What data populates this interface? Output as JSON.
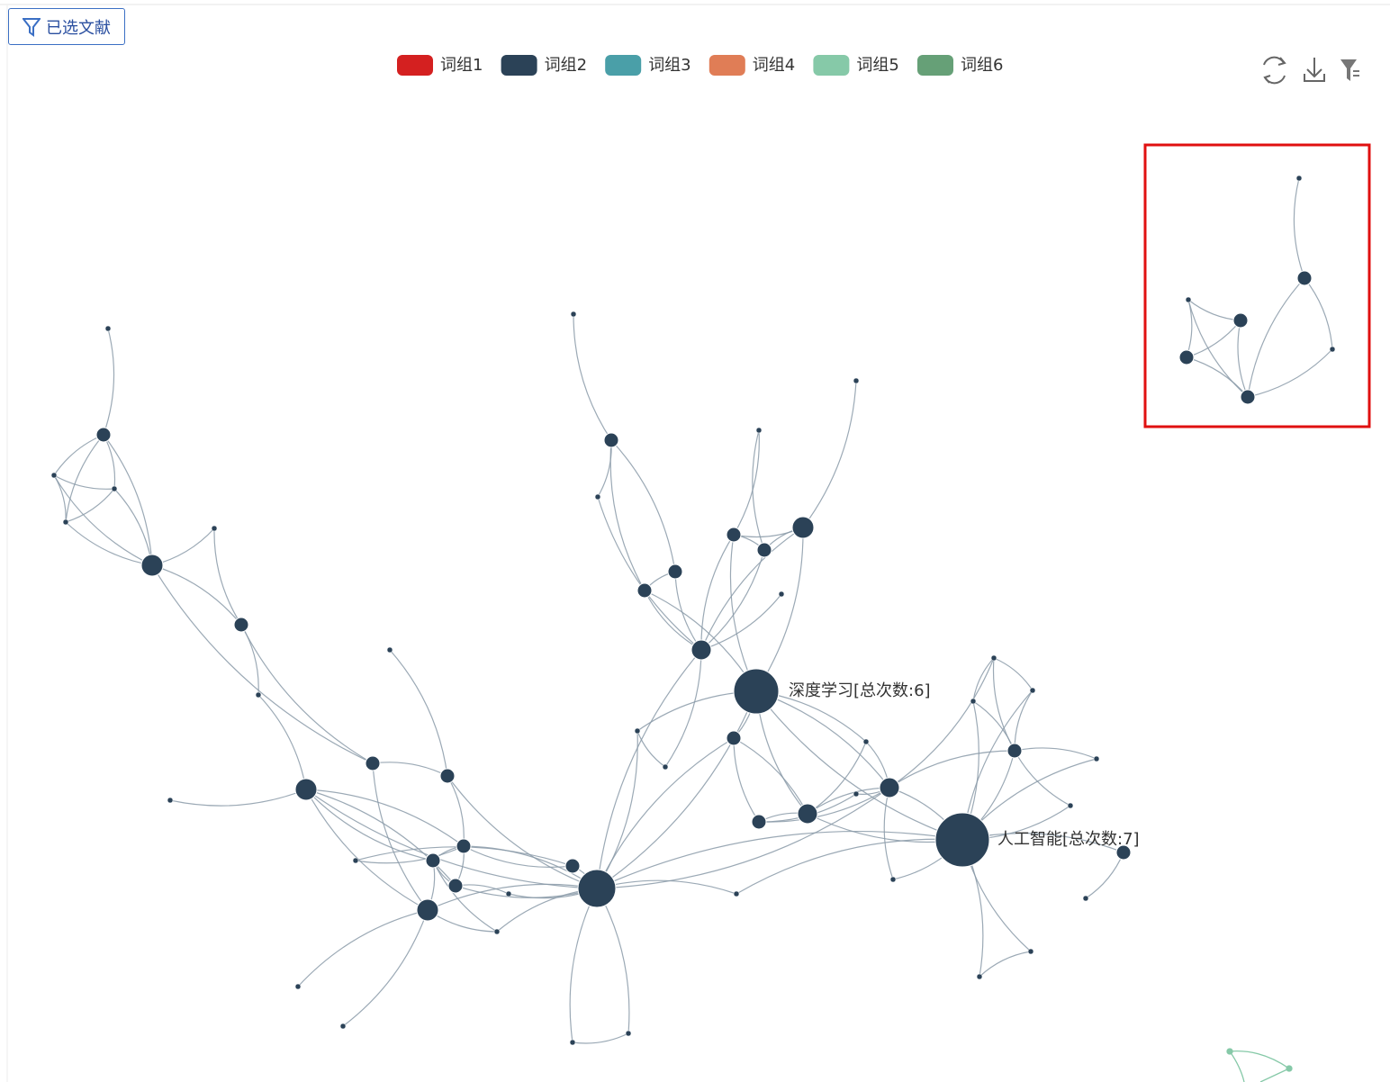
{
  "toolbar": {
    "button": "已选文献"
  },
  "legend": [
    {
      "name": "词组1",
      "color": "#d42020"
    },
    {
      "name": "词组2",
      "color": "#2b4257"
    },
    {
      "name": "词组3",
      "color": "#4a9fa8"
    },
    {
      "name": "词组4",
      "color": "#e07d56"
    },
    {
      "name": "词组5",
      "color": "#86c9a8"
    },
    {
      "name": "词组6",
      "color": "#66a077"
    }
  ],
  "graph": {
    "labels": [
      "深度学习[总次数:6]",
      "人工智能[总次数:7]"
    ]
  }
}
